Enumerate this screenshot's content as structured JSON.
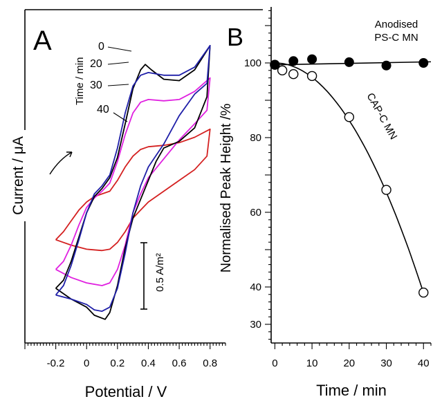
{
  "chart_data": [
    {
      "panel_label": "A",
      "type": "line",
      "xlabel": "Potential / V",
      "ylabel": "Current / μA",
      "xlim": [
        -0.4,
        0.9
      ],
      "x_ticks": [
        "-0.2",
        "0",
        "0.2",
        "0.4",
        "0.6",
        "0.8"
      ],
      "x_tick_values": [
        -0.2,
        0,
        0.2,
        0.4,
        0.6,
        0.8
      ],
      "legend_title": "Time / min",
      "scale_bar_label": "0.5 A/m²",
      "grid": false,
      "series": [
        {
          "name": "0",
          "color": "#000000",
          "forward": [
            [
              -0.2,
              -0.62
            ],
            [
              -0.15,
              -0.56
            ],
            [
              -0.1,
              -0.42
            ],
            [
              -0.05,
              -0.24
            ],
            [
              0.0,
              -0.06
            ],
            [
              0.05,
              0.06
            ],
            [
              0.1,
              0.12
            ],
            [
              0.15,
              0.2
            ],
            [
              0.2,
              0.35
            ],
            [
              0.25,
              0.6
            ],
            [
              0.3,
              0.86
            ],
            [
              0.35,
              1.0
            ],
            [
              0.38,
              1.04
            ],
            [
              0.42,
              1.0
            ],
            [
              0.5,
              0.93
            ],
            [
              0.6,
              0.92
            ],
            [
              0.7,
              1.0
            ],
            [
              0.8,
              1.18
            ]
          ],
          "reverse": [
            [
              0.8,
              1.18
            ],
            [
              0.78,
              0.8
            ],
            [
              0.7,
              0.57
            ],
            [
              0.6,
              0.47
            ],
            [
              0.5,
              0.42
            ],
            [
              0.45,
              0.32
            ],
            [
              0.4,
              0.18
            ],
            [
              0.35,
              0.04
            ],
            [
              0.3,
              -0.1
            ],
            [
              0.25,
              -0.32
            ],
            [
              0.2,
              -0.6
            ],
            [
              0.15,
              -0.8
            ],
            [
              0.12,
              -0.85
            ],
            [
              0.05,
              -0.82
            ],
            [
              0.0,
              -0.76
            ],
            [
              -0.1,
              -0.7
            ],
            [
              -0.2,
              -0.62
            ]
          ]
        },
        {
          "name": "20",
          "color": "#1f1fa8",
          "forward": [
            [
              -0.2,
              -0.67
            ],
            [
              -0.15,
              -0.6
            ],
            [
              -0.1,
              -0.45
            ],
            [
              -0.05,
              -0.26
            ],
            [
              0.0,
              -0.06
            ],
            [
              0.05,
              0.08
            ],
            [
              0.1,
              0.14
            ],
            [
              0.15,
              0.22
            ],
            [
              0.2,
              0.42
            ],
            [
              0.25,
              0.68
            ],
            [
              0.3,
              0.88
            ],
            [
              0.35,
              0.96
            ],
            [
              0.4,
              0.98
            ],
            [
              0.5,
              0.96
            ],
            [
              0.6,
              0.96
            ],
            [
              0.7,
              1.02
            ],
            [
              0.8,
              1.18
            ]
          ],
          "reverse": [
            [
              0.8,
              1.18
            ],
            [
              0.78,
              0.9
            ],
            [
              0.7,
              0.82
            ],
            [
              0.6,
              0.66
            ],
            [
              0.5,
              0.45
            ],
            [
              0.4,
              0.28
            ],
            [
              0.35,
              0.14
            ],
            [
              0.3,
              -0.06
            ],
            [
              0.25,
              -0.36
            ],
            [
              0.2,
              -0.62
            ],
            [
              0.15,
              -0.76
            ],
            [
              0.1,
              -0.79
            ],
            [
              0.05,
              -0.78
            ],
            [
              0.0,
              -0.74
            ],
            [
              -0.1,
              -0.7
            ],
            [
              -0.2,
              -0.67
            ]
          ]
        },
        {
          "name": "30",
          "color": "#e020e0",
          "forward": [
            [
              -0.2,
              -0.48
            ],
            [
              -0.15,
              -0.42
            ],
            [
              -0.1,
              -0.3
            ],
            [
              -0.05,
              -0.15
            ],
            [
              0.0,
              -0.02
            ],
            [
              0.05,
              0.05
            ],
            [
              0.1,
              0.1
            ],
            [
              0.15,
              0.16
            ],
            [
              0.2,
              0.32
            ],
            [
              0.25,
              0.52
            ],
            [
              0.3,
              0.68
            ],
            [
              0.35,
              0.76
            ],
            [
              0.4,
              0.78
            ],
            [
              0.5,
              0.77
            ],
            [
              0.6,
              0.78
            ],
            [
              0.7,
              0.84
            ],
            [
              0.8,
              0.94
            ]
          ],
          "reverse": [
            [
              0.8,
              0.94
            ],
            [
              0.78,
              0.7
            ],
            [
              0.7,
              0.6
            ],
            [
              0.6,
              0.48
            ],
            [
              0.5,
              0.34
            ],
            [
              0.4,
              0.2
            ],
            [
              0.35,
              0.08
            ],
            [
              0.3,
              -0.06
            ],
            [
              0.25,
              -0.3
            ],
            [
              0.2,
              -0.48
            ],
            [
              0.15,
              -0.58
            ],
            [
              0.1,
              -0.6
            ],
            [
              0.0,
              -0.58
            ],
            [
              -0.1,
              -0.54
            ],
            [
              -0.2,
              -0.48
            ]
          ]
        },
        {
          "name": "40",
          "color": "#d42020",
          "forward": [
            [
              -0.2,
              -0.26
            ],
            [
              -0.15,
              -0.2
            ],
            [
              -0.1,
              -0.12
            ],
            [
              -0.05,
              -0.04
            ],
            [
              0.0,
              0.02
            ],
            [
              0.05,
              0.06
            ],
            [
              0.1,
              0.08
            ],
            [
              0.15,
              0.1
            ],
            [
              0.2,
              0.18
            ],
            [
              0.25,
              0.28
            ],
            [
              0.3,
              0.36
            ],
            [
              0.35,
              0.41
            ],
            [
              0.4,
              0.43
            ],
            [
              0.5,
              0.44
            ],
            [
              0.6,
              0.46
            ],
            [
              0.7,
              0.5
            ],
            [
              0.8,
              0.56
            ]
          ],
          "reverse": [
            [
              0.8,
              0.56
            ],
            [
              0.78,
              0.36
            ],
            [
              0.7,
              0.26
            ],
            [
              0.6,
              0.18
            ],
            [
              0.5,
              0.1
            ],
            [
              0.4,
              0.02
            ],
            [
              0.35,
              -0.04
            ],
            [
              0.3,
              -0.1
            ],
            [
              0.25,
              -0.2
            ],
            [
              0.2,
              -0.28
            ],
            [
              0.15,
              -0.33
            ],
            [
              0.1,
              -0.34
            ],
            [
              0.0,
              -0.33
            ],
            [
              -0.1,
              -0.3
            ],
            [
              -0.2,
              -0.26
            ]
          ]
        }
      ]
    },
    {
      "panel_label": "B",
      "type": "scatter",
      "xlabel": "Time / min",
      "ylabel": "Normalised Peak Height /%",
      "xlim": [
        -1,
        42
      ],
      "ylim": [
        25,
        115
      ],
      "x_ticks": [
        0,
        10,
        20,
        30,
        40
      ],
      "y_ticks": [
        30,
        40,
        60,
        80,
        100
      ],
      "grid": false,
      "series": [
        {
          "name": "Anodised PS-C MN",
          "name_lines": [
            "Anodised",
            "PS-C MN"
          ],
          "marker": "filled-circle",
          "points": [
            [
              0,
              99.5
            ],
            [
              5,
              100.5
            ],
            [
              10,
              101
            ],
            [
              20,
              100.2
            ],
            [
              30,
              99.3
            ],
            [
              40,
              100
            ]
          ],
          "fit_line": [
            [
              0,
              99.5
            ],
            [
              42,
              100.3
            ]
          ]
        },
        {
          "name": "CAP-C MN",
          "marker": "open-circle",
          "points": [
            [
              0,
              99.5
            ],
            [
              2,
              98
            ],
            [
              5,
              97
            ],
            [
              10,
              96.5
            ],
            [
              20,
              85.5
            ],
            [
              30,
              66
            ],
            [
              40,
              38.5
            ]
          ],
          "fit_curve": {
            "a": 100,
            "b": 0.0385,
            "exponent": 2,
            "x_range": [
              0,
              40
            ]
          }
        }
      ]
    }
  ]
}
